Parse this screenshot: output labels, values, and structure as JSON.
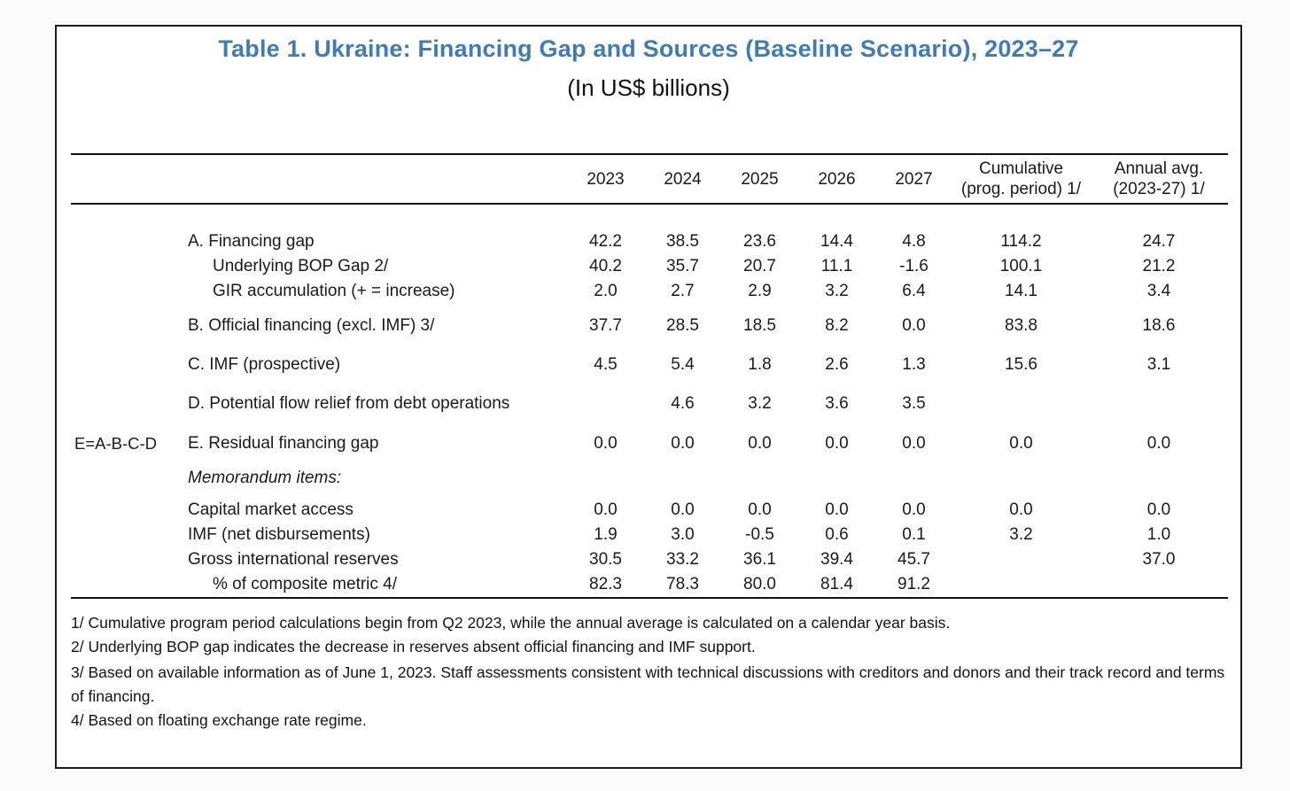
{
  "table": {
    "title": "Table 1. Ukraine: Financing Gap and Sources (Baseline Scenario), 2023–27",
    "subtitle": "(In US$ billions)",
    "title_color": "#3e7cb5",
    "columns": [
      {
        "id": "y2023",
        "line1": "2023",
        "line2": ""
      },
      {
        "id": "y2024",
        "line1": "2024",
        "line2": ""
      },
      {
        "id": "y2025",
        "line1": "2025",
        "line2": ""
      },
      {
        "id": "y2026",
        "line1": "2026",
        "line2": ""
      },
      {
        "id": "y2027",
        "line1": "2027",
        "line2": ""
      },
      {
        "id": "cumulative",
        "line1": "Cumulative",
        "line2": "(prog. period) 1/"
      },
      {
        "id": "annual-avg",
        "line1": "Annual avg.",
        "line2": "(2023-27) 1/"
      }
    ],
    "rows": [
      {
        "id": "financing-gap",
        "formula": "",
        "label": "A. Financing gap",
        "values": [
          "42.2",
          "38.5",
          "23.6",
          "14.4",
          "4.8",
          "114.2",
          "24.7"
        ]
      },
      {
        "id": "underlying-bop-gap",
        "formula": "",
        "label": "Underlying BOP Gap 2/",
        "values": [
          "40.2",
          "35.7",
          "20.7",
          "11.1",
          "-1.6",
          "100.1",
          "21.2"
        ]
      },
      {
        "id": "gir-accumulation",
        "formula": "",
        "label": "GIR accumulation (+ = increase)",
        "values": [
          "2.0",
          "2.7",
          "2.9",
          "3.2",
          "6.4",
          "14.1",
          "3.4"
        ]
      },
      {
        "id": "official-financing",
        "formula": "",
        "label": "B. Official financing (excl. IMF) 3/",
        "values": [
          "37.7",
          "28.5",
          "18.5",
          "8.2",
          "0.0",
          "83.8",
          "18.6"
        ]
      },
      {
        "id": "imf-prospective",
        "formula": "",
        "label": "C. IMF (prospective)",
        "values": [
          "4.5",
          "5.4",
          "1.8",
          "2.6",
          "1.3",
          "15.6",
          "3.1"
        ]
      },
      {
        "id": "debt-relief",
        "formula": "",
        "label": "D. Potential flow relief from debt operations",
        "values": [
          "",
          "4.6",
          "3.2",
          "3.6",
          "3.5",
          "",
          ""
        ]
      },
      {
        "id": "residual-gap",
        "formula": "E=A-B-C-D",
        "label": "E. Residual financing gap",
        "values": [
          "0.0",
          "0.0",
          "0.0",
          "0.0",
          "0.0",
          "0.0",
          "0.0"
        ]
      },
      {
        "id": "memorandum",
        "formula": "",
        "label": "Memorandum items:",
        "values": [
          "",
          "",
          "",
          "",
          "",
          "",
          ""
        ]
      },
      {
        "id": "capital-market",
        "formula": "",
        "label": "Capital market access",
        "values": [
          "0.0",
          "0.0",
          "0.0",
          "0.0",
          "0.0",
          "0.0",
          "0.0"
        ]
      },
      {
        "id": "imf-net",
        "formula": "",
        "label": "IMF (net disbursements)",
        "values": [
          "1.9",
          "3.0",
          "-0.5",
          "0.6",
          "0.1",
          "3.2",
          "1.0"
        ]
      },
      {
        "id": "gross-reserves",
        "formula": "",
        "label": "Gross international reserves",
        "values": [
          "30.5",
          "33.2",
          "36.1",
          "39.4",
          "45.7",
          "",
          "37.0"
        ]
      },
      {
        "id": "composite-metric",
        "formula": "",
        "label": "% of composite metric 4/",
        "values": [
          "82.3",
          "78.3",
          "80.0",
          "81.4",
          "91.2",
          "",
          ""
        ]
      }
    ],
    "footnotes": [
      "1/ Cumulative program period calculations begin from Q2 2023, while the annual average is calculated on a calendar year basis.",
      "2/ Underlying BOP gap indicates the decrease in reserves absent official financing and IMF support.",
      "3/ Based on available information as of June 1, 2023. Staff assessments consistent with technical discussions with creditors and donors and their track record and terms of financing.",
      "4/ Based on floating exchange rate regime."
    ]
  }
}
